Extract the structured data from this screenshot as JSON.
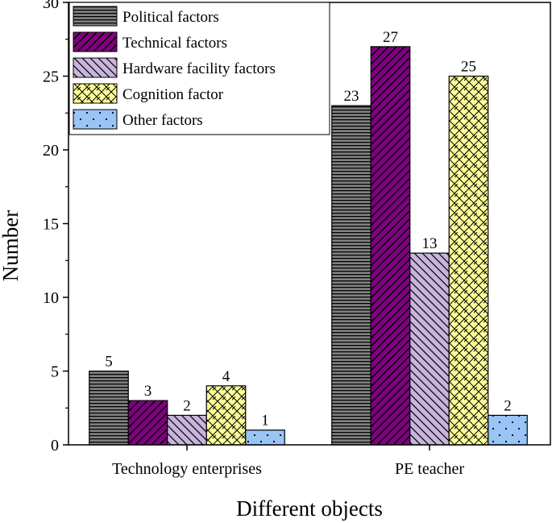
{
  "chart_data": {
    "type": "bar",
    "title": "",
    "xlabel": "Different objects",
    "ylabel": "Number",
    "categories": [
      "Technology enterprises",
      "PE teacher"
    ],
    "series": [
      {
        "name": "Political factors",
        "values": [
          5,
          23
        ],
        "color": "#808080",
        "pattern": "horizontal-lines"
      },
      {
        "name": "Technical factors",
        "values": [
          3,
          27
        ],
        "color": "#800080",
        "pattern": "diagonal-lines"
      },
      {
        "name": "Hardware facility factors",
        "values": [
          2,
          13
        ],
        "color": "#c8b4dc",
        "pattern": "diagonal-lines"
      },
      {
        "name": "Cognition factor",
        "values": [
          4,
          25
        ],
        "color": "#ffff99",
        "pattern": "crosshatch"
      },
      {
        "name": "Other factors",
        "values": [
          1,
          2
        ],
        "color": "#99c4f5",
        "pattern": "dots"
      }
    ],
    "ylim": [
      0,
      30
    ],
    "yticks": [
      0,
      5,
      10,
      15,
      20,
      25,
      30
    ],
    "grid": false,
    "legend": "top-left"
  }
}
